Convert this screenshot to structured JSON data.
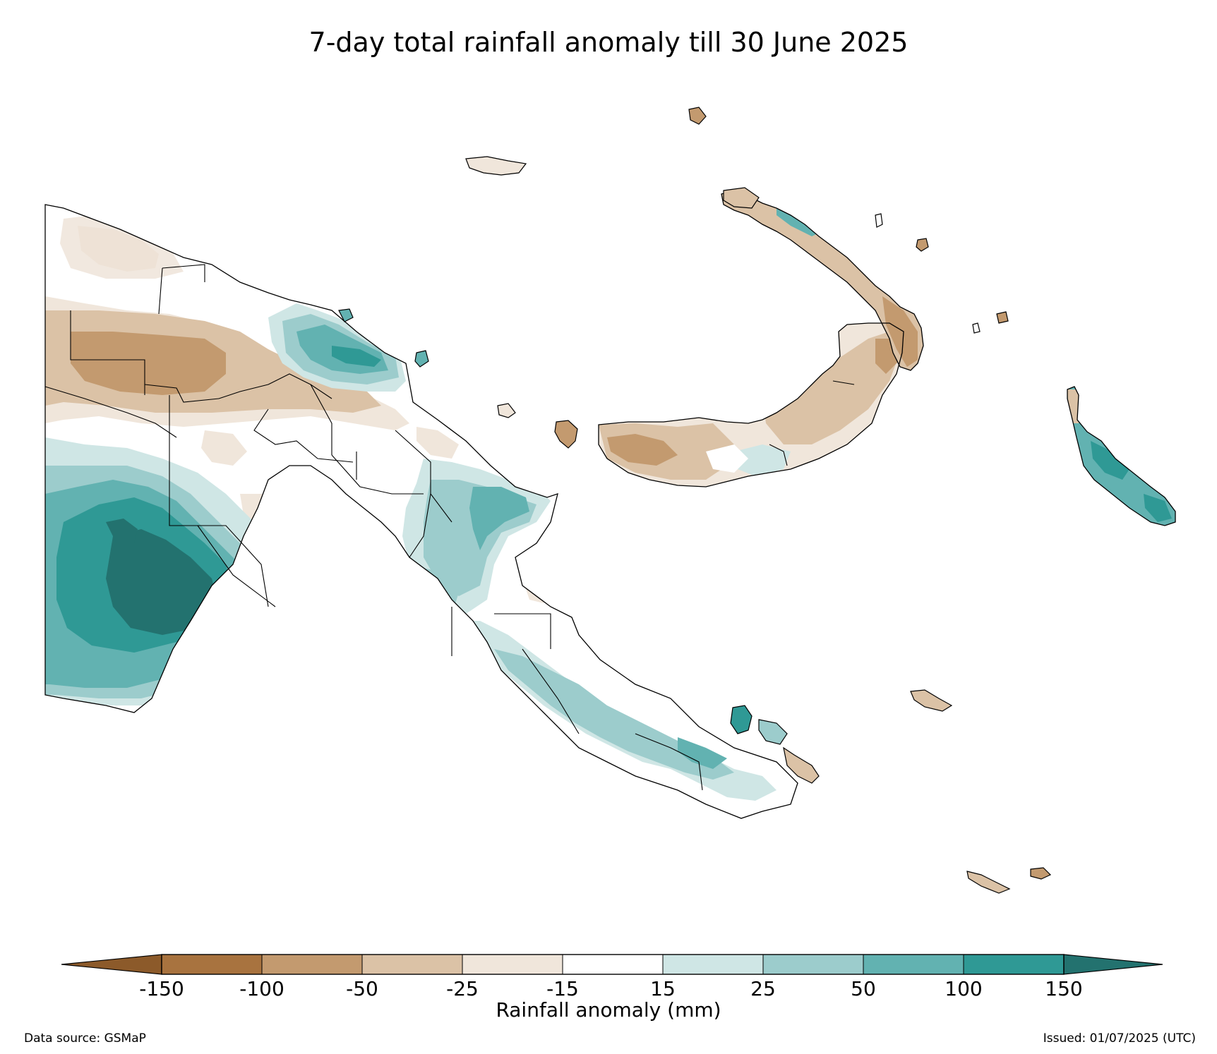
{
  "title": "7-day total rainfall anomaly till 30 June 2025",
  "colorbar": {
    "label": "Rainfall anomaly (mm)",
    "ticks": [
      "-150",
      "-100",
      "-50",
      "-25",
      "-15",
      "15",
      "25",
      "50",
      "100",
      "150"
    ],
    "colors": {
      "below_min": "#8c5a2a",
      "bins": [
        "#a8733f",
        "#c39a6f",
        "#dbc2a6",
        "#f0e6db",
        "#ffffff",
        "#cfe6e5",
        "#9ccccc",
        "#62b2b1",
        "#2f9995"
      ],
      "above_max": "#23726f"
    }
  },
  "colors": {
    "coast": "#000000",
    "very_wet": "#23726f",
    "wet_150": "#2f9995",
    "wet_100": "#62b2b1",
    "wet_50": "#9ccccc",
    "wet_25": "#cfe6e5",
    "dry_25": "#f0e6db",
    "dry_50": "#dbc2a6",
    "dry_100": "#c39a6f",
    "dry_150": "#a8733f"
  },
  "footer": {
    "source": "Data source: GSMaP",
    "issued": "Issued: 01/07/2025 (UTC)"
  }
}
